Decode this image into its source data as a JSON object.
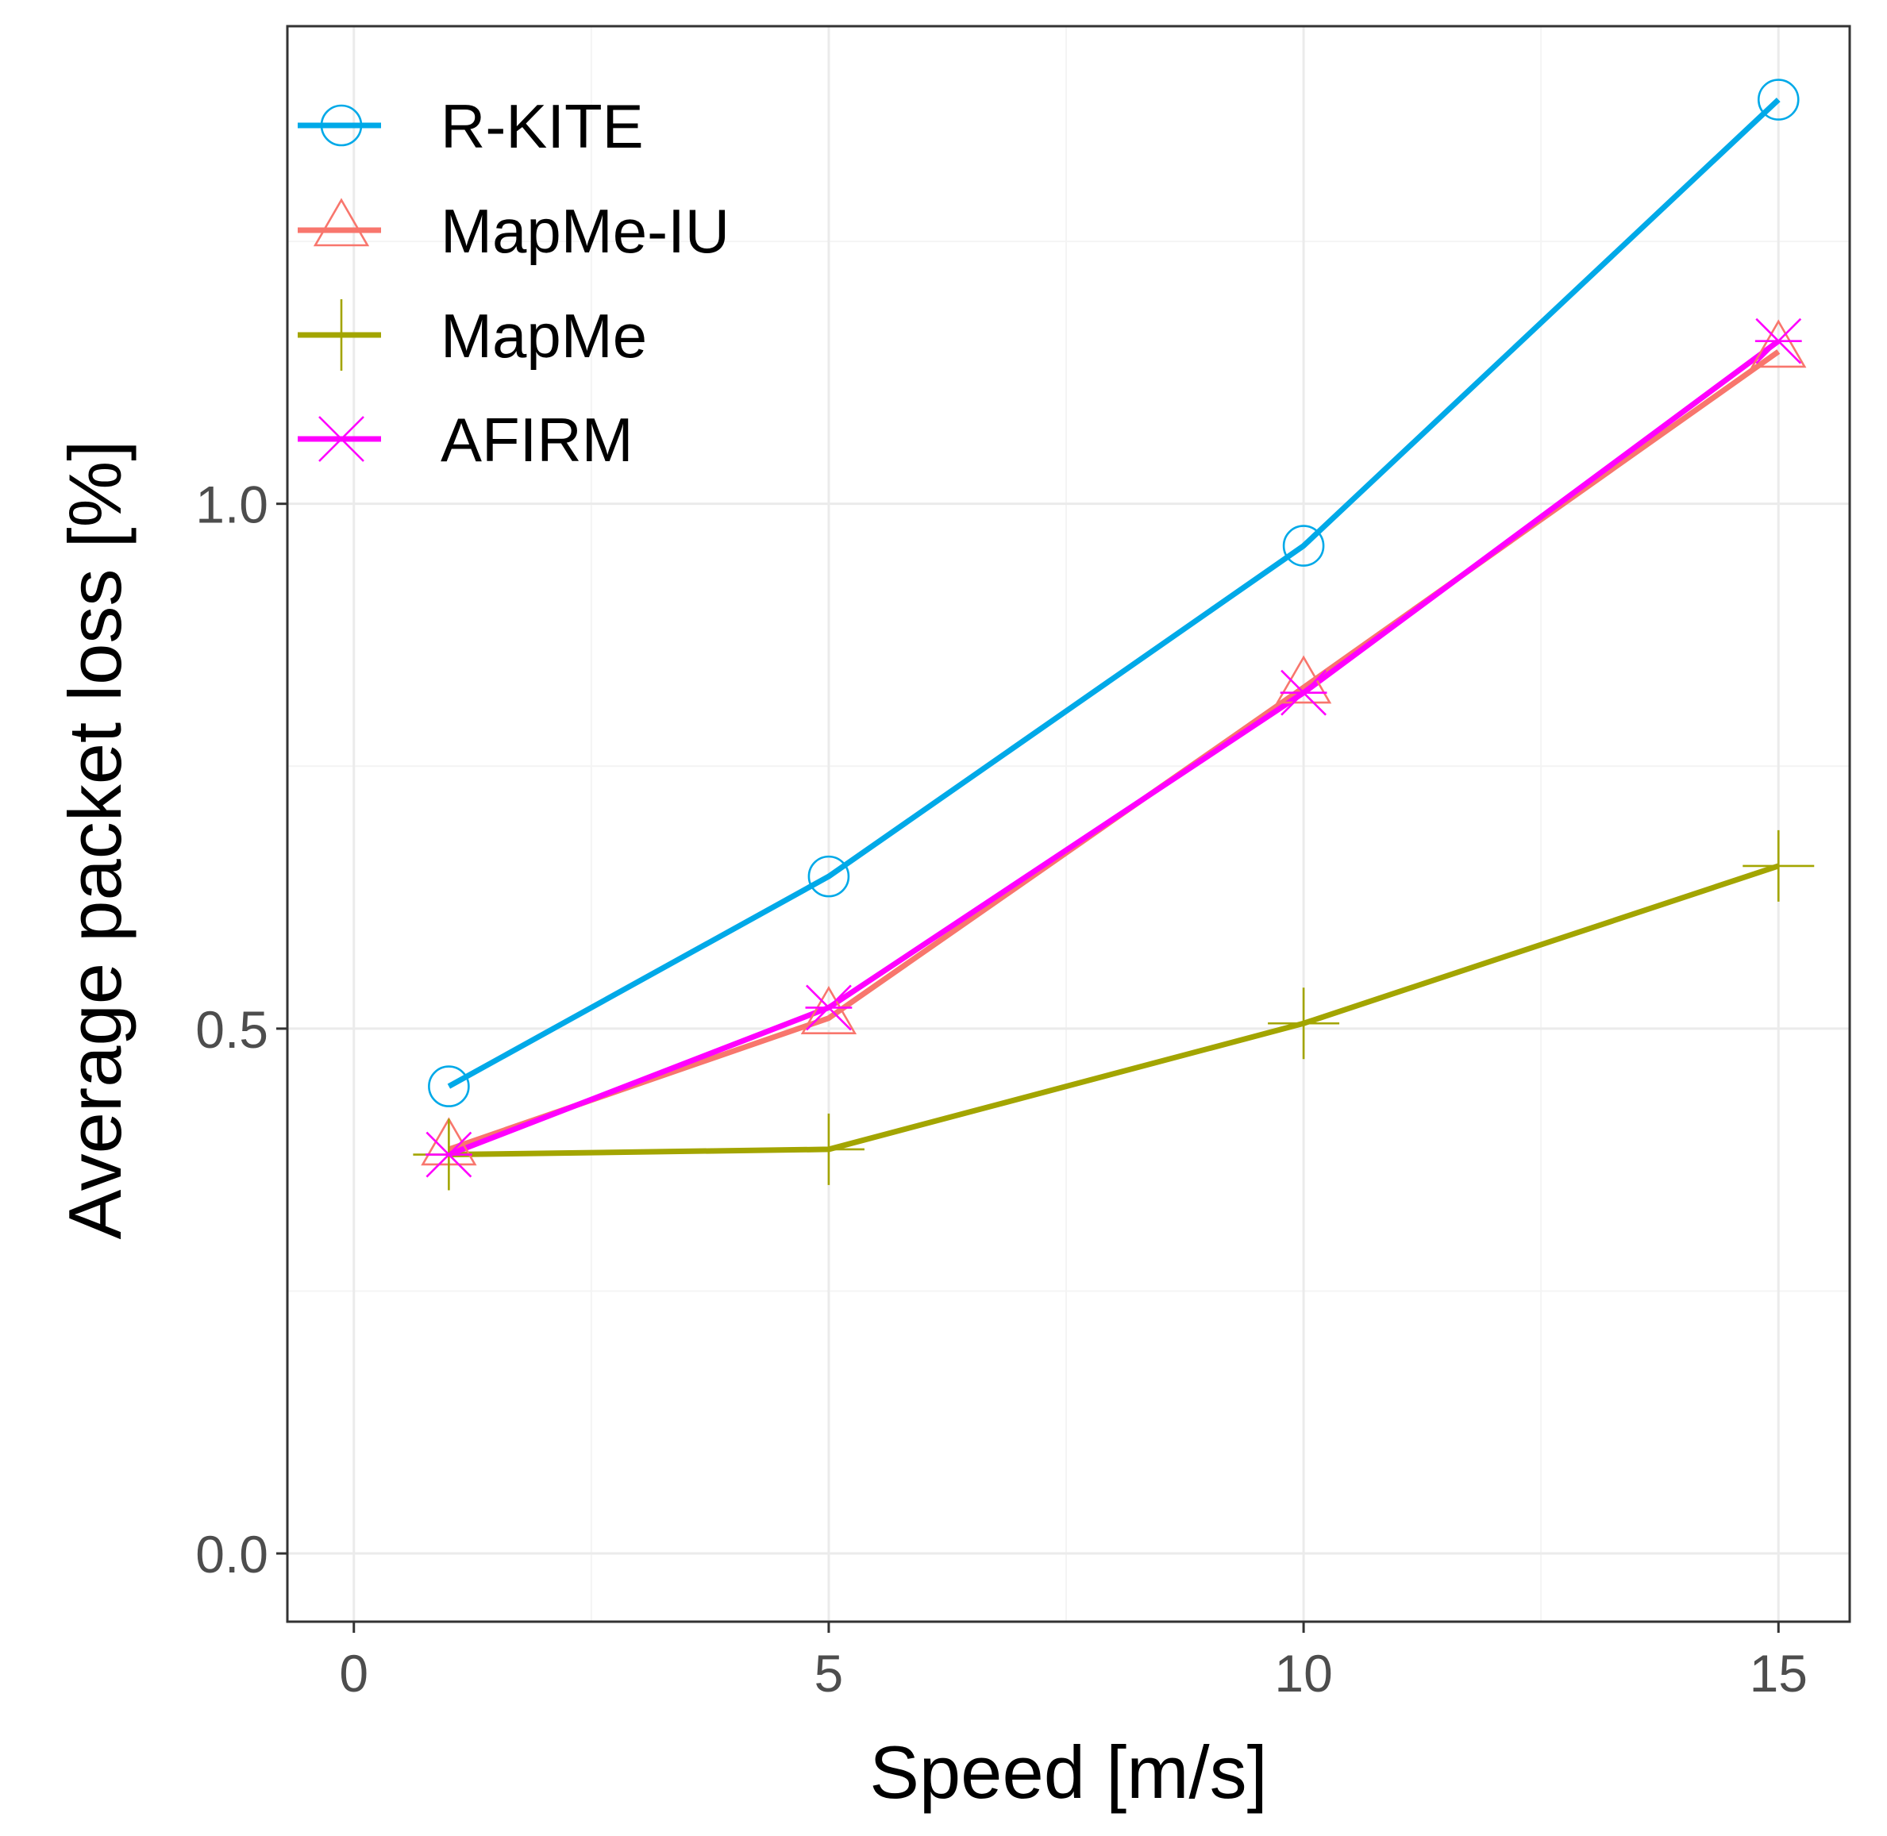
{
  "chart_data": {
    "type": "line",
    "title": "",
    "xlabel": "Speed [m/s]",
    "ylabel": "Average packet loss [%]",
    "xlim": [
      -0.7,
      15.75
    ],
    "ylim": [
      -0.065,
      1.455
    ],
    "x_ticks": [
      {
        "value": 0,
        "label": "0"
      },
      {
        "value": 5,
        "label": "5"
      },
      {
        "value": 10,
        "label": "10"
      },
      {
        "value": 15,
        "label": "15"
      }
    ],
    "y_ticks": [
      {
        "value": 0.0,
        "label": "0.0"
      },
      {
        "value": 0.5,
        "label": "0.5"
      },
      {
        "value": 1.0,
        "label": "1.0"
      }
    ],
    "x_minor": [
      2.5,
      7.5,
      12.5
    ],
    "y_minor": [
      0.25,
      0.75,
      1.25
    ],
    "grid": true,
    "legend_position": "top-left",
    "x": [
      1,
      5,
      10,
      15
    ],
    "series": [
      {
        "name": "R-KITE",
        "color": "#00a9e8",
        "marker": "circle",
        "values": [
          0.445,
          0.645,
          0.96,
          1.385
        ]
      },
      {
        "name": "MapMe-IU",
        "color": "#f8766d",
        "marker": "triangle",
        "values": [
          0.385,
          0.51,
          0.825,
          1.145
        ]
      },
      {
        "name": "MapMe",
        "color": "#a3a500",
        "marker": "plus",
        "values": [
          0.38,
          0.385,
          0.505,
          0.655
        ]
      },
      {
        "name": "AFIRM",
        "color": "#ff00ff",
        "marker": "cross",
        "values": [
          0.38,
          0.52,
          0.82,
          1.155
        ]
      }
    ]
  }
}
